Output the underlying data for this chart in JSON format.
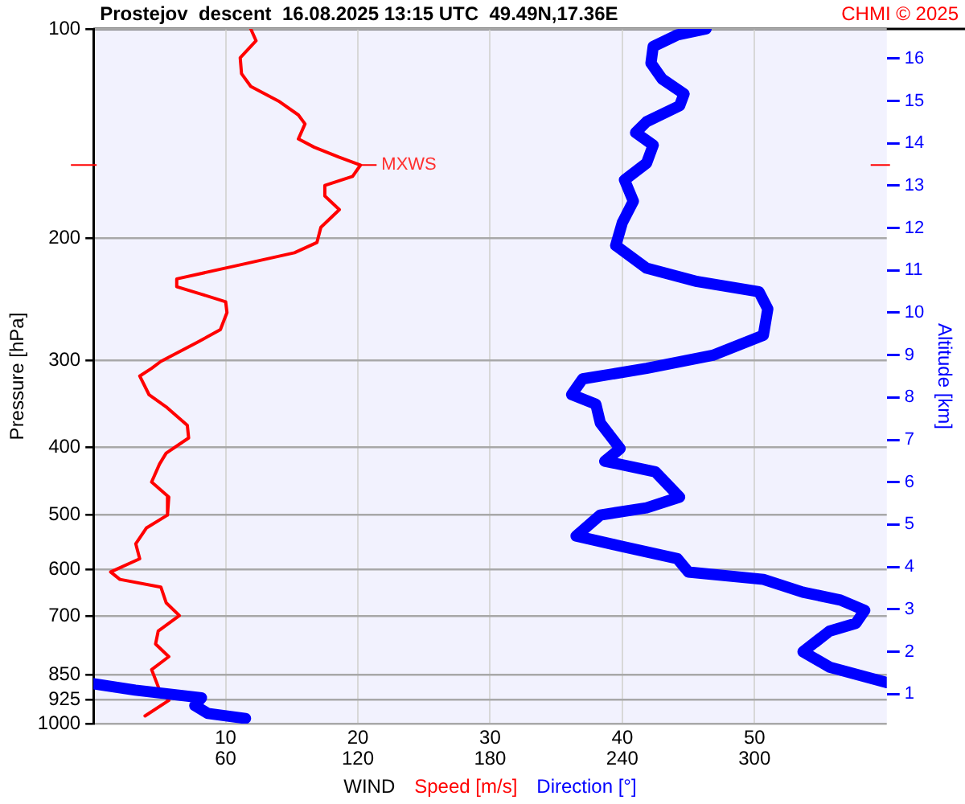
{
  "chart_data": {
    "type": "line",
    "orientation": "horizontal",
    "title": "Prostejov  descent  16.08.2025 13:15 UTC  49.49N,17.36E",
    "xlabel": "WIND",
    "ylabel": "Pressure [hPa]",
    "y2label": "Altitude [km]",
    "annotations": [
      "CHMI © 2025",
      {
        "text": "MXWS",
        "x": 20.2,
        "y": 157
      }
    ],
    "xlim": [
      0,
      60
    ],
    "xticks": [
      10,
      20,
      30,
      40,
      50
    ],
    "x2lim": [
      0,
      360
    ],
    "x2ticks": [
      60,
      120,
      180,
      240,
      300
    ],
    "ylim": [
      1000,
      100
    ],
    "yticks": [
      100,
      200,
      300,
      400,
      500,
      600,
      700,
      850,
      925,
      1000
    ],
    "y2lim": [
      0.3,
      16.7
    ],
    "y2ticks": [
      1,
      2,
      3,
      4,
      5,
      6,
      7,
      8,
      9,
      10,
      11,
      12,
      13,
      14,
      15,
      16
    ],
    "log": "y",
    "grid": true,
    "legend": "bottom",
    "marker": "none",
    "line_style": "solid",
    "series": [
      {
        "name": "Speed [m/s]",
        "color": "#ff0000",
        "values": [
          11.9,
          12.3,
          11.1,
          11.2,
          11.9,
          14.0,
          15.5,
          16.0,
          15.5,
          16.7,
          18.6,
          20.2,
          19.6,
          17.5,
          17.5,
          18.6,
          17.2,
          16.9,
          15.2,
          10.9,
          6.3,
          6.3,
          8.2,
          10.0,
          10.1,
          9.6,
          7.8,
          5.1,
          4.4,
          3.5,
          4.2,
          5.5,
          7.1,
          7.2,
          5.5,
          5.0,
          4.4,
          5.7,
          5.6,
          4.0,
          3.2,
          3.5,
          1.3,
          2.0,
          5.1,
          5.5,
          6.5,
          4.9,
          4.7,
          5.7,
          4.4,
          5.0,
          5.7,
          3.9
        ],
        "x": [
          100,
          104,
          110,
          116,
          121,
          127,
          133,
          137,
          144,
          148,
          153,
          157,
          163,
          168,
          174,
          182,
          193,
          203,
          210,
          219,
          229,
          235,
          241,
          247,
          256,
          271,
          283,
          301,
          308,
          316,
          336,
          350,
          372,
          388,
          408,
          423,
          449,
          472,
          501,
          523,
          551,
          579,
          605,
          620,
          636,
          670,
          699,
          736,
          768,
          801,
          836,
          895,
          926,
          975
        ]
      },
      {
        "name": "Direction [°]",
        "color": "#0000ff",
        "axis": "x2",
        "values": [
          278,
          265,
          254,
          253,
          258,
          268,
          266,
          251,
          246,
          254,
          251,
          241,
          245,
          240,
          237,
          251,
          274,
          302,
          306,
          304,
          281,
          251,
          222,
          217,
          228,
          230,
          239,
          232,
          255,
          266,
          251,
          230,
          219,
          239,
          265,
          270,
          304,
          322,
          339,
          350,
          346,
          334,
          322,
          334,
          360,
          null,
          0,
          19,
          49,
          46,
          52,
          69
        ],
        "x": [
          100,
          102,
          106,
          112,
          118,
          124,
          129,
          136,
          141,
          147,
          156,
          165,
          177,
          190,
          205,
          221,
          231,
          239,
          253,
          276,
          295,
          308,
          319,
          336,
          347,
          369,
          402,
          419,
          434,
          472,
          489,
          501,
          537,
          555,
          579,
          605,
          620,
          647,
          664,
          687,
          717,
          736,
          788,
          829,
          873,
          null,
          876,
          895,
          918,
          942,
          967,
          983
        ]
      }
    ]
  }
}
